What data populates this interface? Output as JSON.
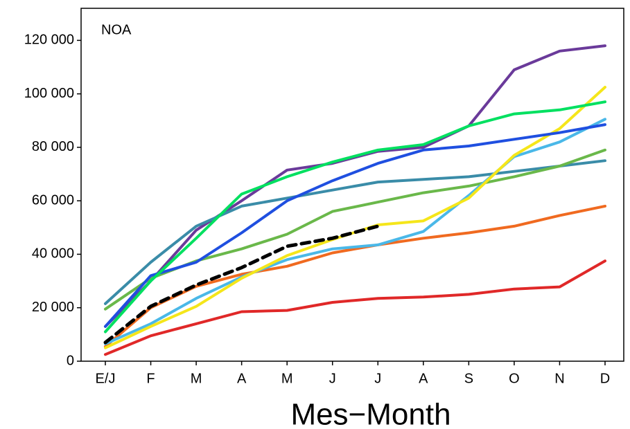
{
  "chart_data": {
    "type": "line",
    "annotation": "NOA",
    "x_label": "Mes−Month",
    "categories": [
      "E/J",
      "F",
      "M",
      "A",
      "M",
      "J",
      "J",
      "A",
      "S",
      "O",
      "N",
      "D"
    ],
    "ylim": [
      0,
      132000
    ],
    "yticks": [
      0,
      {
        "value": 20000,
        "label": "20 000"
      },
      {
        "value": 40000,
        "label": "40 000"
      },
      {
        "value": 60000,
        "label": "60 000"
      },
      {
        "value": 80000,
        "label": "80 000"
      },
      {
        "value": 100000,
        "label": "100 000"
      },
      {
        "value": 120000,
        "label": "120 000"
      }
    ],
    "grid": false,
    "series": [
      {
        "color": "#6a3a9a",
        "values": [
          13000,
          30000,
          49000,
          60000,
          71500,
          74000,
          78500,
          80000,
          88000,
          109000,
          116000,
          118000
        ]
      },
      {
        "color": "#3a8ca8",
        "values": [
          21500,
          37000,
          50500,
          58000,
          61000,
          64000,
          67000,
          68000,
          69000,
          71000,
          73000,
          75000
        ]
      },
      {
        "color": "#6ab84a",
        "values": [
          19500,
          31000,
          37500,
          42000,
          47500,
          56000,
          59500,
          63000,
          65500,
          69000,
          73000,
          79000
        ]
      },
      {
        "color": "#f06a20",
        "values": [
          5500,
          20000,
          28000,
          32500,
          35500,
          40500,
          43500,
          46000,
          48000,
          50500,
          54500,
          58000
        ]
      },
      {
        "color": "#e02828",
        "values": [
          2500,
          9500,
          14000,
          18500,
          19000,
          22000,
          23500,
          24000,
          25000,
          27000,
          27800,
          37500
        ]
      },
      {
        "color": "#4ab8e8",
        "values": [
          6500,
          14000,
          23500,
          31500,
          38000,
          42000,
          43500,
          48500,
          62000,
          76500,
          82000,
          90500
        ]
      },
      {
        "color": "#f5e61a",
        "values": [
          5000,
          13000,
          20500,
          31000,
          39500,
          45500,
          51000,
          52500,
          61000,
          77000,
          87000,
          102500
        ]
      },
      {
        "color": "#1f4fe0",
        "values": [
          13000,
          32000,
          37000,
          48000,
          60000,
          67500,
          74000,
          79000,
          80500,
          83000,
          85500,
          88500
        ]
      },
      {
        "color": "#00e060",
        "values": [
          11000,
          30000,
          46000,
          62500,
          69000,
          74500,
          79000,
          81000,
          88000,
          92500,
          94000,
          97000
        ]
      },
      {
        "color": "#000000",
        "dashed": true,
        "values": [
          7000,
          20500,
          28500,
          35000,
          43000,
          46000,
          50500,
          null,
          null,
          null,
          null,
          null
        ]
      }
    ]
  }
}
